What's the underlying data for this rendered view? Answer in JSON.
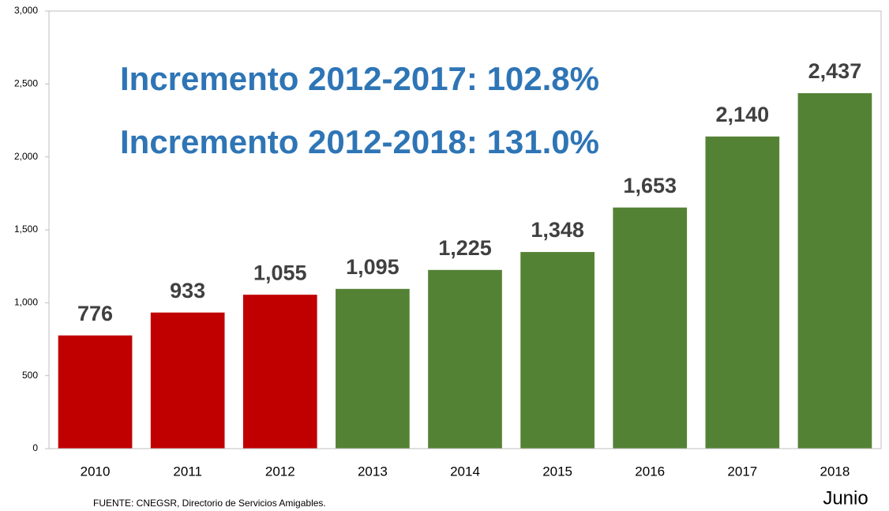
{
  "chart_data": {
    "type": "bar",
    "annotations": [
      "Incremento 2012-2017: 102.8%",
      "Incremento 2012-2018: 131.0%"
    ],
    "source": "FUENTE: CNEGSR, Directorio de Servicios Amigables.",
    "category_note": "Junio",
    "categories": [
      "2010",
      "2011",
      "2012",
      "2013",
      "2014",
      "2015",
      "2016",
      "2017",
      "2018"
    ],
    "values": [
      776,
      933,
      1055,
      1095,
      1225,
      1348,
      1653,
      2140,
      2437
    ],
    "value_labels": [
      "776",
      "933",
      "1,055",
      "1,095",
      "1,225",
      "1,348",
      "1,653",
      "2,140",
      "2,437"
    ],
    "colors": [
      "#c00000",
      "#c00000",
      "#c00000",
      "#548235",
      "#548235",
      "#548235",
      "#548235",
      "#548235",
      "#548235"
    ],
    "ylim": [
      0,
      3000
    ],
    "yticks": [
      0,
      500,
      {
        "value": 1000,
        "label": "1,000"
      },
      {
        "value": 1500,
        "label": "1,500"
      },
      {
        "value": 2000,
        "label": "2,000"
      },
      {
        "value": 2500,
        "label": "2,500"
      },
      {
        "value": 3000,
        "label": "3,000"
      }
    ],
    "grid": false
  }
}
